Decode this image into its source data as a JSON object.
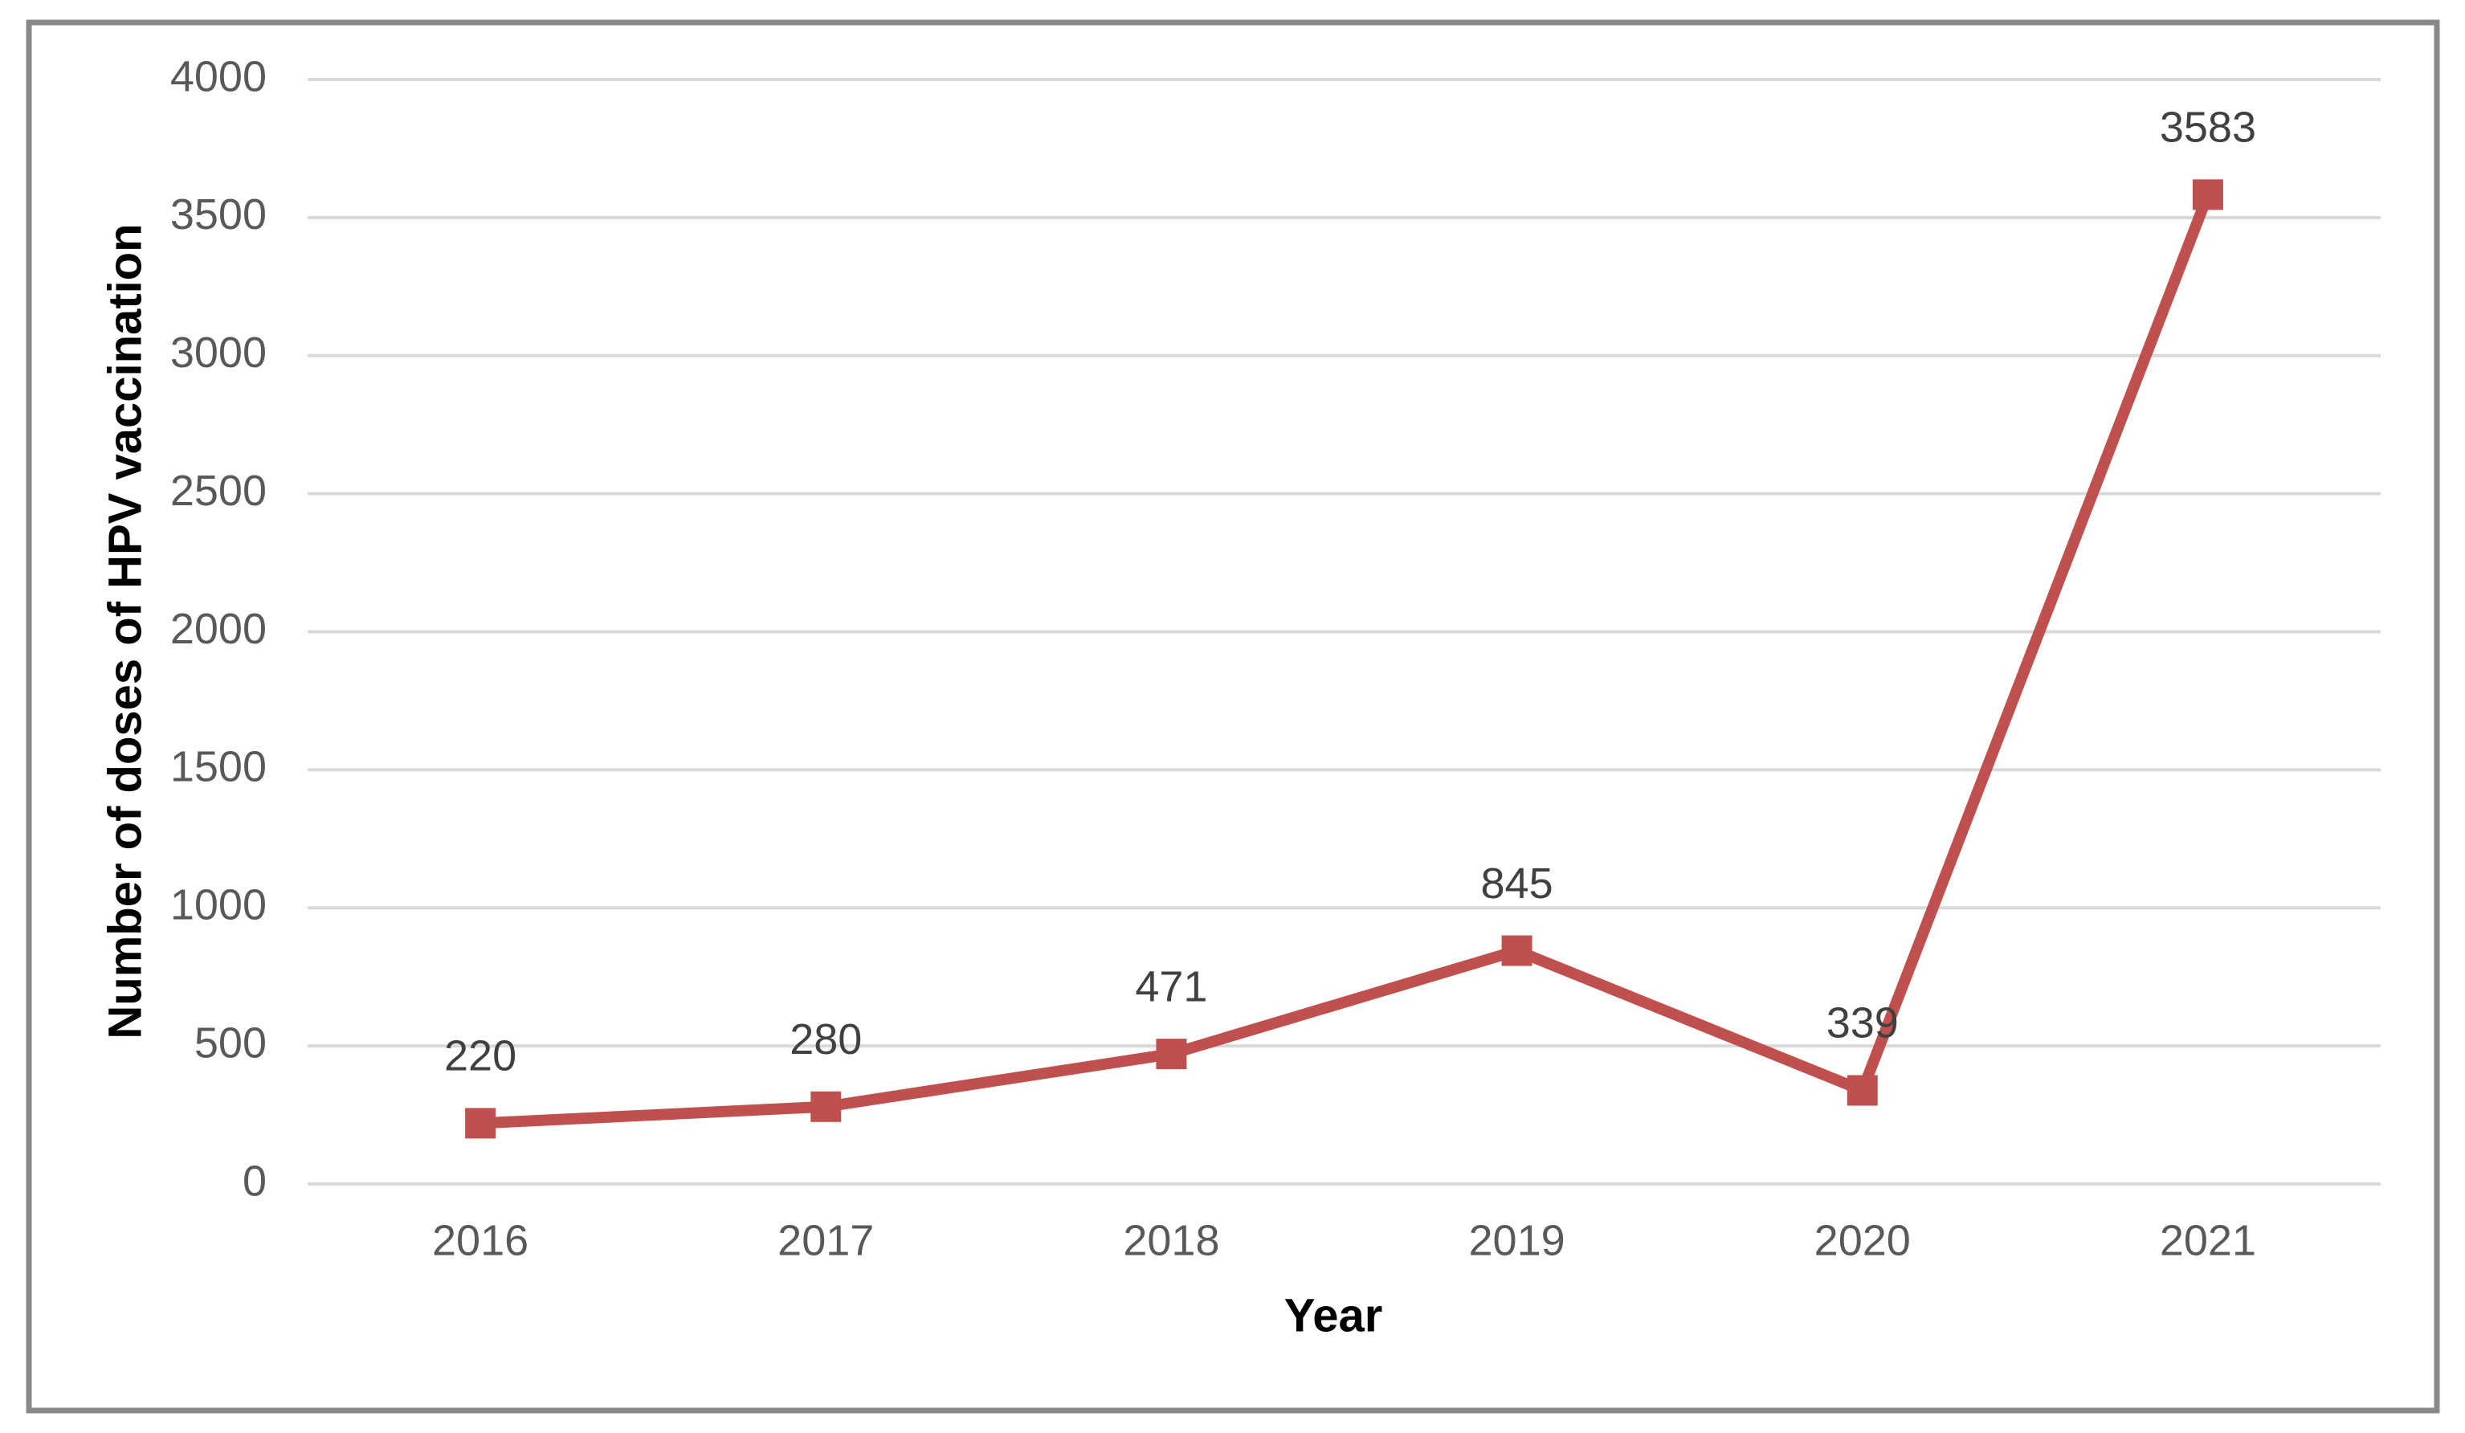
{
  "chart_data": {
    "type": "line",
    "categories": [
      "2016",
      "2017",
      "2018",
      "2019",
      "2020",
      "2021"
    ],
    "values": [
      220,
      280,
      471,
      845,
      339,
      3583
    ],
    "data_labels": [
      "220",
      "280",
      "471",
      "845",
      "339",
      "3583"
    ],
    "xlabel": "Year",
    "ylabel": "Number of doses of HPV vaccination",
    "ylim": [
      0,
      4000
    ],
    "ytick_step": 500,
    "ytick_labels": [
      "0",
      "500",
      "1000",
      "1500",
      "2000",
      "2500",
      "3000",
      "3500",
      "4000"
    ],
    "grid": true,
    "legend_position": "none",
    "marker_shape": "square",
    "colors": {
      "series": "#C0504D",
      "gridline": "#D9D9D9",
      "tick_label": "#595959",
      "data_label": "#404040",
      "axis_title": "#000000",
      "border": "#898989",
      "background": "#FFFFFF"
    }
  }
}
